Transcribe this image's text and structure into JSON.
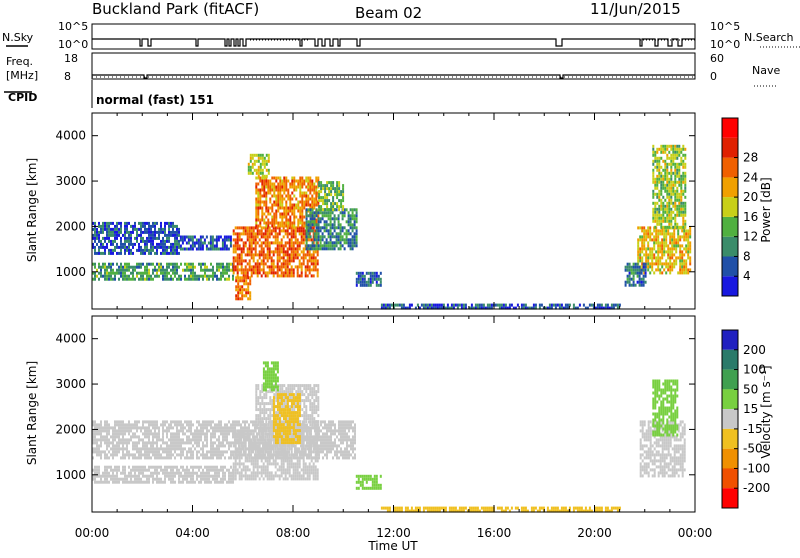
{
  "header": {
    "station": "Buckland Park (fitACF)",
    "beam": "Beam 02",
    "date": "11/Jun/2015"
  },
  "strips": {
    "nsky_label": "N.Sky",
    "nsky_hi": "10^5",
    "nsky_lo": "10^0",
    "nsearch_hi": "10^5",
    "nsearch_lo": "10^0",
    "nsearch_label": "N.Search",
    "freq_label_1": "Freq.",
    "freq_label_2": "[MHz]",
    "freq_hi": "18",
    "freq_lo": "8",
    "nave_hi": "60",
    "nave_lo": "0",
    "nave_label": "Nave",
    "cpid_label": "CPID",
    "cpid_text": "normal (fast) 151"
  },
  "chart_data": [
    {
      "type": "heatmap",
      "name": "power",
      "ylabel": "Slant Range [km]",
      "xlabel": "Time UT",
      "xlim": [
        0,
        24
      ],
      "ylim": [
        180,
        4500
      ],
      "xticks": [
        "00:00",
        "04:00",
        "08:00",
        "12:00",
        "16:00",
        "20:00",
        "00:00"
      ],
      "yticks": [
        1000,
        2000,
        3000,
        4000
      ],
      "colorbar": {
        "label": "Power [dB]",
        "ticks": [
          "4",
          "8",
          "12",
          "16",
          "20",
          "24",
          "28"
        ],
        "colors": [
          "#1818e0",
          "#2050a8",
          "#3a8c6a",
          "#50b040",
          "#c8d018",
          "#f0a000",
          "#f06000",
          "#e02000",
          "#ff0000"
        ]
      },
      "regions": [
        {
          "t0": 0.0,
          "t1": 5.6,
          "r0": 850,
          "r1": 1200,
          "value": 12
        },
        {
          "t0": 0.0,
          "t1": 3.5,
          "r0": 1400,
          "r1": 2100,
          "value": 6
        },
        {
          "t0": 3.5,
          "t1": 5.5,
          "r0": 1500,
          "r1": 1800,
          "value": 6
        },
        {
          "t0": 5.6,
          "t1": 9.0,
          "r0": 900,
          "r1": 2000,
          "value": 26
        },
        {
          "t0": 6.5,
          "t1": 9.0,
          "r0": 2000,
          "r1": 3100,
          "value": 24
        },
        {
          "t0": 6.2,
          "t1": 7.0,
          "r0": 3100,
          "r1": 3600,
          "value": 18
        },
        {
          "t0": 5.7,
          "t1": 6.3,
          "r0": 380,
          "r1": 900,
          "value": 26
        },
        {
          "t0": 8.5,
          "t1": 10.5,
          "r0": 1500,
          "r1": 2400,
          "value": 10
        },
        {
          "t0": 9.0,
          "t1": 10.0,
          "r0": 2400,
          "r1": 3000,
          "value": 14
        },
        {
          "t0": 10.5,
          "t1": 11.5,
          "r0": 700,
          "r1": 1000,
          "value": 7
        },
        {
          "t0": 21.7,
          "t1": 23.8,
          "r0": 1000,
          "r1": 2000,
          "value": 20
        },
        {
          "t0": 22.3,
          "t1": 23.6,
          "r0": 2000,
          "r1": 3800,
          "value": 16
        },
        {
          "t0": 21.2,
          "t1": 22.0,
          "r0": 700,
          "r1": 1200,
          "value": 8
        },
        {
          "t0": 11.5,
          "t1": 21.0,
          "r0": 200,
          "r1": 300,
          "value": 6
        }
      ]
    },
    {
      "type": "heatmap",
      "name": "velocity",
      "ylabel": "Slant Range [km]",
      "xlabel": "Time UT",
      "xlim": [
        0,
        24
      ],
      "ylim": [
        180,
        4500
      ],
      "xticks": [
        "00:00",
        "04:00",
        "08:00",
        "12:00",
        "16:00",
        "20:00",
        "00:00"
      ],
      "yticks": [
        1000,
        2000,
        3000,
        4000
      ],
      "colorbar": {
        "label": "Velocity [m s⁻¹]",
        "ticks": [
          "200",
          "100",
          "50",
          "15",
          "-15",
          "-50",
          "-100",
          "-200"
        ],
        "colors": [
          "#2020c0",
          "#2a7a6a",
          "#40a050",
          "#78d040",
          "#c8c8c8",
          "#f0c020",
          "#f09000",
          "#f05000",
          "#ff0000"
        ]
      },
      "regions": [
        {
          "t0": 0.0,
          "t1": 5.6,
          "r0": 850,
          "r1": 1200,
          "value": 0
        },
        {
          "t0": 0.0,
          "t1": 10.5,
          "r0": 1400,
          "r1": 2200,
          "value": 0
        },
        {
          "t0": 5.6,
          "t1": 9.0,
          "r0": 900,
          "r1": 2000,
          "value": 0
        },
        {
          "t0": 6.5,
          "t1": 9.0,
          "r0": 2000,
          "r1": 3000,
          "value": 0
        },
        {
          "t0": 7.2,
          "t1": 8.3,
          "r0": 1700,
          "r1": 2800,
          "value": -30
        },
        {
          "t0": 6.8,
          "t1": 7.4,
          "r0": 2900,
          "r1": 3500,
          "value": 30
        },
        {
          "t0": 10.5,
          "t1": 11.5,
          "r0": 700,
          "r1": 1000,
          "value": 30
        },
        {
          "t0": 21.8,
          "t1": 23.6,
          "r0": 1000,
          "r1": 2200,
          "value": 0
        },
        {
          "t0": 22.3,
          "t1": 23.3,
          "r0": 1900,
          "r1": 3100,
          "value": 30
        },
        {
          "t0": 11.5,
          "t1": 21.0,
          "r0": 200,
          "r1": 300,
          "value": -30
        }
      ]
    }
  ]
}
